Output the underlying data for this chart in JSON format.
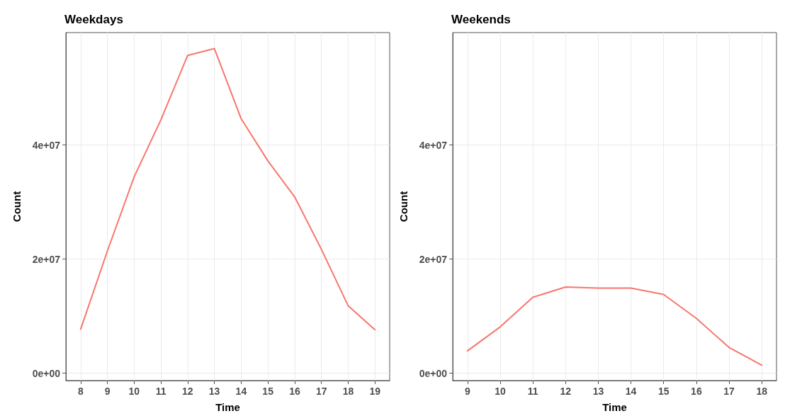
{
  "chart_data": [
    {
      "type": "line",
      "title": "Weekdays",
      "xlabel": "Time",
      "ylabel": "Count",
      "x": [
        8,
        9,
        10,
        11,
        12,
        13,
        14,
        15,
        16,
        17,
        18,
        19
      ],
      "series": [
        {
          "color": "#f8766d",
          "values": [
            7700000,
            21400000,
            34400000,
            44400000,
            55700000,
            56900000,
            44600000,
            37200000,
            30900000,
            21700000,
            11800000,
            7600000
          ]
        }
      ],
      "xlim": [
        7.45,
        19.55
      ],
      "xticks": [
        8,
        9,
        10,
        11,
        12,
        13,
        14,
        15,
        16,
        17,
        18,
        19
      ],
      "ylim": [
        -1300000,
        59700000
      ],
      "yticks": [
        {
          "value": 0,
          "label": "0e+00"
        },
        {
          "value": 20000000,
          "label": "2e+07"
        },
        {
          "value": 40000000,
          "label": "4e+07"
        }
      ],
      "grid": true,
      "marker": "none",
      "line_style": "solid"
    },
    {
      "type": "line",
      "title": "Weekends",
      "xlabel": "Time",
      "ylabel": "Count",
      "x": [
        9,
        10,
        11,
        12,
        13,
        14,
        15,
        16,
        17,
        18
      ],
      "series": [
        {
          "color": "#f8766d",
          "values": [
            3900000,
            8100000,
            13300000,
            15100000,
            14900000,
            14900000,
            13800000,
            9600000,
            4500000,
            1400000
          ]
        }
      ],
      "xlim": [
        8.55,
        18.45
      ],
      "xticks": [
        9,
        10,
        11,
        12,
        13,
        14,
        15,
        16,
        17,
        18
      ],
      "ylim": [
        -1300000,
        59700000
      ],
      "yticks": [
        {
          "value": 0,
          "label": "0e+00"
        },
        {
          "value": 20000000,
          "label": "2e+07"
        },
        {
          "value": 40000000,
          "label": "4e+07"
        }
      ],
      "grid": true,
      "marker": "none",
      "line_style": "solid"
    }
  ]
}
